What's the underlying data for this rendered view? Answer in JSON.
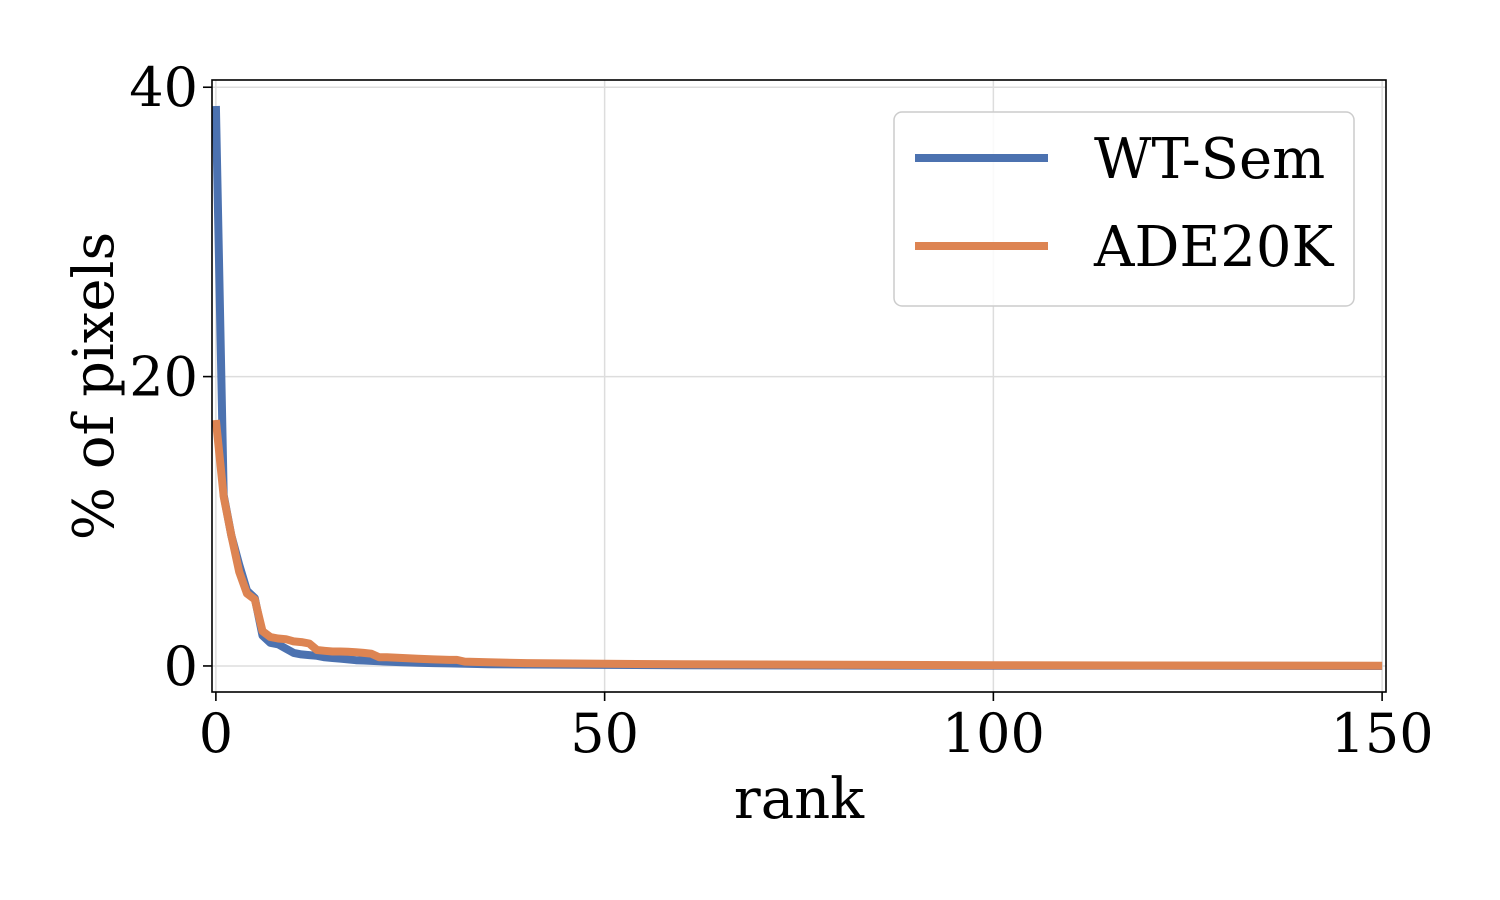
{
  "chart_data": {
    "type": "line",
    "title": "",
    "xlabel": "rank",
    "ylabel": "% of pixels",
    "xlim": [
      -0.5,
      150.5
    ],
    "ylim": [
      -1.8,
      40.5
    ],
    "xticks": [
      0,
      50,
      100,
      150
    ],
    "yticks": [
      0,
      20,
      40
    ],
    "xtick_labels": [
      "0",
      "50",
      "100",
      "150"
    ],
    "ytick_labels": [
      "0",
      "20",
      "40"
    ],
    "grid": true,
    "legend_position": "top-right",
    "series": [
      {
        "name": "WT-Sem",
        "color": "#4c72b0",
        "x": [
          0,
          1,
          2,
          3,
          4,
          5,
          6,
          7,
          8,
          9,
          10,
          11,
          12,
          13,
          14,
          15,
          16,
          17,
          18,
          19,
          20,
          22,
          24,
          26,
          28,
          30,
          35,
          40,
          50,
          60,
          70,
          80,
          100,
          120,
          150
        ],
        "y": [
          38.7,
          11.8,
          9.0,
          7.0,
          5.2,
          4.7,
          2.1,
          1.6,
          1.5,
          1.2,
          0.9,
          0.8,
          0.75,
          0.7,
          0.6,
          0.55,
          0.5,
          0.45,
          0.4,
          0.38,
          0.35,
          0.3,
          0.25,
          0.22,
          0.2,
          0.18,
          0.12,
          0.1,
          0.07,
          0.05,
          0.04,
          0.03,
          0.02,
          0.01,
          0.0
        ]
      },
      {
        "name": "ADE20K",
        "color": "#dd8452",
        "x": [
          0,
          1,
          2,
          3,
          4,
          5,
          6,
          7,
          8,
          9,
          10,
          11,
          12,
          13,
          14,
          15,
          16,
          17,
          18,
          19,
          20,
          21,
          22,
          24,
          26,
          28,
          30,
          31,
          32,
          35,
          40,
          50,
          60,
          70,
          80,
          100,
          120,
          150
        ],
        "y": [
          17.0,
          11.7,
          9.0,
          6.5,
          5.0,
          4.6,
          2.4,
          2.0,
          1.9,
          1.85,
          1.7,
          1.65,
          1.55,
          1.1,
          1.05,
          1.0,
          1.0,
          0.98,
          0.95,
          0.9,
          0.85,
          0.6,
          0.6,
          0.55,
          0.5,
          0.45,
          0.42,
          0.42,
          0.3,
          0.25,
          0.2,
          0.15,
          0.12,
          0.1,
          0.08,
          0.05,
          0.03,
          0.02
        ]
      }
    ]
  }
}
